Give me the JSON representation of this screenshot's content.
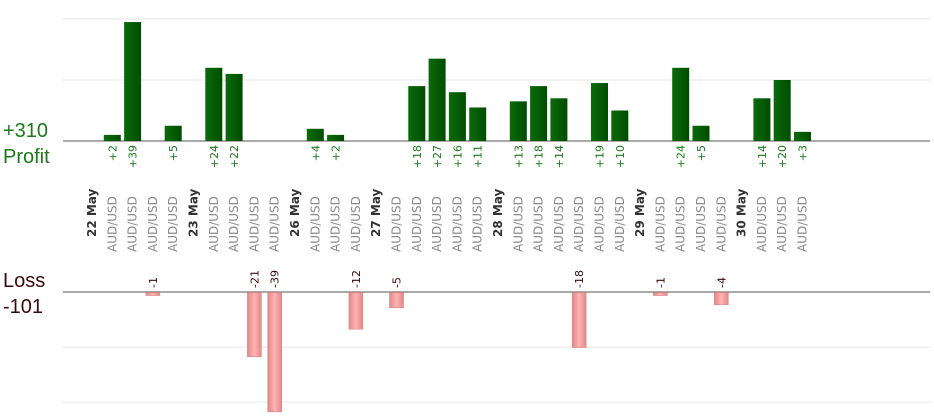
{
  "chart_data": {
    "type": "bar",
    "summary": {
      "profit_total": "+310",
      "profit_label": "Profit",
      "loss_label": "Loss",
      "loss_total": "-101"
    },
    "colors": {
      "profit_bar": "#0b6a0b",
      "profit_bar_dark": "#004d00",
      "profit_text": "#1a7a1a",
      "loss_bar": "#ffb3b3",
      "loss_bar_edge": "#e08888",
      "loss_text": "#3a0a0a",
      "grid": "#e6e6e6",
      "axis": "#555555"
    },
    "slots": [
      {
        "date": "22 May"
      },
      {
        "pair": "AUD/USD",
        "profit": 2,
        "profit_label": "+2"
      },
      {
        "pair": "AUD/USD",
        "profit": 39,
        "profit_label": "+39"
      },
      {
        "pair": "AUD/USD",
        "loss": -1,
        "loss_label": "-1"
      },
      {
        "pair": "AUD/USD",
        "profit": 5,
        "profit_label": "+5"
      },
      {
        "date": "23 May"
      },
      {
        "pair": "AUD/USD",
        "profit": 24,
        "profit_label": "+24"
      },
      {
        "pair": "AUD/USD",
        "profit": 22,
        "profit_label": "+22"
      },
      {
        "pair": "AUD/USD",
        "loss": -21,
        "loss_label": "-21"
      },
      {
        "pair": "AUD/USD",
        "loss": -39,
        "loss_label": "-39"
      },
      {
        "date": "26 May"
      },
      {
        "pair": "AUD/USD",
        "profit": 4,
        "profit_label": "+4"
      },
      {
        "pair": "AUD/USD",
        "profit": 2,
        "profit_label": "+2"
      },
      {
        "pair": "AUD/USD",
        "loss": -12,
        "loss_label": "-12"
      },
      {
        "date": "27 May"
      },
      {
        "pair": "AUD/USD",
        "loss": -5,
        "loss_label": "-5"
      },
      {
        "pair": "AUD/USD",
        "profit": 18,
        "profit_label": "+18"
      },
      {
        "pair": "AUD/USD",
        "profit": 27,
        "profit_label": "+27"
      },
      {
        "pair": "AUD/USD",
        "profit": 16,
        "profit_label": "+16"
      },
      {
        "pair": "AUD/USD",
        "profit": 11,
        "profit_label": "+11"
      },
      {
        "date": "28 May"
      },
      {
        "pair": "AUD/USD",
        "profit": 13,
        "profit_label": "+13"
      },
      {
        "pair": "AUD/USD",
        "profit": 18,
        "profit_label": "+18"
      },
      {
        "pair": "AUD/USD",
        "profit": 14,
        "profit_label": "+14"
      },
      {
        "pair": "AUD/USD",
        "loss": -18,
        "loss_label": "-18"
      },
      {
        "pair": "AUD/USD",
        "profit": 19,
        "profit_label": "+19"
      },
      {
        "pair": "AUD/USD",
        "profit": 10,
        "profit_label": "+10"
      },
      {
        "date": "29 May"
      },
      {
        "pair": "AUD/USD",
        "loss": -1,
        "loss_label": "-1"
      },
      {
        "pair": "AUD/USD",
        "profit": 24,
        "profit_label": "+24"
      },
      {
        "pair": "AUD/USD",
        "profit": 5,
        "profit_label": "+5"
      },
      {
        "pair": "AUD/USD",
        "loss": -4,
        "loss_label": "-4"
      },
      {
        "date": "30 May"
      },
      {
        "pair": "AUD/USD",
        "profit": 14,
        "profit_label": "+14"
      },
      {
        "pair": "AUD/USD",
        "profit": 20,
        "profit_label": "+20"
      },
      {
        "pair": "AUD/USD",
        "profit": 3,
        "profit_label": "+3"
      }
    ],
    "profit_axis_max": 20,
    "loss_axis_min": -36,
    "grid": true
  }
}
